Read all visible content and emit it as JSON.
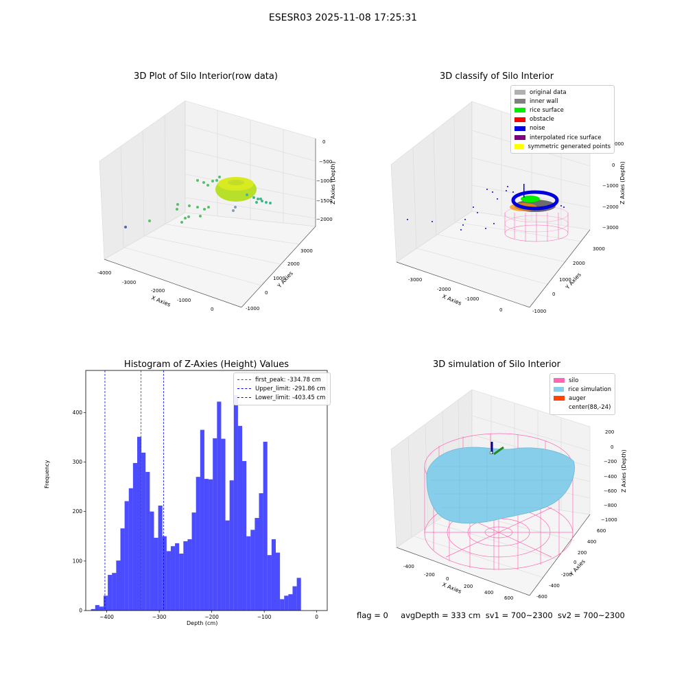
{
  "figure": {
    "title": "ESESR03 2025-11-08 17:25:31",
    "status": {
      "flag": "flag = 0",
      "avg_depth": "avgDepth = 333 cm",
      "sv1": "sv1 = 700~2300",
      "sv2": "sv2 = 700~2300"
    }
  },
  "panels": {
    "raw": {
      "title": "3D Plot of Silo Interior(row data)",
      "xlabel": "X Axies",
      "ylabel": "Y Axies",
      "zlabel": "Z Axies (Depth)",
      "xticks": [
        "-4000",
        "-3000",
        "-2000",
        "-1000",
        "0"
      ],
      "yticks": [
        "-1000",
        "0",
        "1000",
        "2000",
        "3000"
      ],
      "zticks": [
        "0",
        "−500",
        "−1000",
        "−1500",
        "−2000"
      ]
    },
    "classify": {
      "title": "3D classify of Silo Interior",
      "xlabel": "X Axies",
      "ylabel": "Y Axies",
      "zlabel": "Z Axies (Depth)",
      "xticks": [
        "-3000",
        "-2000",
        "-1000",
        "0"
      ],
      "yticks": [
        "-1000",
        "0",
        "1000",
        "2000",
        "3000"
      ],
      "zticks": [
        "000",
        "0",
        "−1000",
        "−2000",
        "−3000"
      ],
      "legend": [
        {
          "label": "original data",
          "color": "#b0b0b0"
        },
        {
          "label": "inner wall",
          "color": "#808080"
        },
        {
          "label": "rice surface",
          "color": "#00ee00"
        },
        {
          "label": "obstacle",
          "color": "#ff0000"
        },
        {
          "label": "noise",
          "color": "#0000dd"
        },
        {
          "label": "interpolated rice surface",
          "color": "#800080"
        },
        {
          "label": "symmetric generated points",
          "color": "#ffff00"
        }
      ]
    },
    "simulation": {
      "title": "3D simulation of Silo Interior",
      "xlabel": "X Axies",
      "ylabel": "Y Axies",
      "zlabel": "Z Axies (Depth)",
      "xticks": [
        "-400",
        "-200",
        "0",
        "200",
        "400",
        "600"
      ],
      "yticks": [
        "-600",
        "-400",
        "-200",
        "0",
        "200",
        "400",
        "600"
      ],
      "zticks": [
        "200",
        "0",
        "−200",
        "−400",
        "−600",
        "−800",
        "−1000"
      ],
      "legend": [
        {
          "label": "silo",
          "color": "#ff69b4"
        },
        {
          "label": "rice simulation",
          "color": "#87ceeb"
        },
        {
          "label": "auger",
          "color": "#ff4500"
        },
        {
          "label": "center(88,-24)",
          "color": ""
        }
      ]
    }
  },
  "chart_data": {
    "type": "bar",
    "title": "Histogram of Z-Axies (Height) Values",
    "xlabel": "Depth (cm)",
    "ylabel": "Frequency",
    "xlim": [
      -440,
      20
    ],
    "ylim": [
      0,
      485
    ],
    "xticks": [
      -400,
      -300,
      -200,
      -100,
      0
    ],
    "xtick_labels": [
      "−400",
      "−300",
      "−200",
      "−100",
      "0"
    ],
    "yticks": [
      0,
      100,
      200,
      300,
      400
    ],
    "bar_color": "#0000ff",
    "bins": [
      {
        "x0": -430,
        "x1": -422,
        "value": 3
      },
      {
        "x0": -422,
        "x1": -414,
        "value": 11
      },
      {
        "x0": -414,
        "x1": -406,
        "value": 8
      },
      {
        "x0": -406,
        "x1": -398,
        "value": 30
      },
      {
        "x0": -398,
        "x1": -390,
        "value": 72
      },
      {
        "x0": -390,
        "x1": -382,
        "value": 76
      },
      {
        "x0": -382,
        "x1": -374,
        "value": 101
      },
      {
        "x0": -374,
        "x1": -366,
        "value": 166
      },
      {
        "x0": -366,
        "x1": -358,
        "value": 221
      },
      {
        "x0": -358,
        "x1": -350,
        "value": 247
      },
      {
        "x0": -350,
        "x1": -342,
        "value": 298
      },
      {
        "x0": -342,
        "x1": -334,
        "value": 351
      },
      {
        "x0": -334,
        "x1": -326,
        "value": 319
      },
      {
        "x0": -326,
        "x1": -318,
        "value": 280
      },
      {
        "x0": -318,
        "x1": -310,
        "value": 200
      },
      {
        "x0": -310,
        "x1": -302,
        "value": 147
      },
      {
        "x0": -302,
        "x1": -294,
        "value": 212
      },
      {
        "x0": -294,
        "x1": -286,
        "value": 150
      },
      {
        "x0": -286,
        "x1": -278,
        "value": 120
      },
      {
        "x0": -278,
        "x1": -270,
        "value": 130
      },
      {
        "x0": -270,
        "x1": -262,
        "value": 136
      },
      {
        "x0": -262,
        "x1": -254,
        "value": 115
      },
      {
        "x0": -254,
        "x1": -246,
        "value": 140
      },
      {
        "x0": -246,
        "x1": -238,
        "value": 144
      },
      {
        "x0": -238,
        "x1": -230,
        "value": 198
      },
      {
        "x0": -230,
        "x1": -222,
        "value": 270
      },
      {
        "x0": -222,
        "x1": -214,
        "value": 365
      },
      {
        "x0": -214,
        "x1": -206,
        "value": 266
      },
      {
        "x0": -206,
        "x1": -198,
        "value": 265
      },
      {
        "x0": -198,
        "x1": -190,
        "value": 348
      },
      {
        "x0": -190,
        "x1": -182,
        "value": 422
      },
      {
        "x0": -182,
        "x1": -174,
        "value": 347
      },
      {
        "x0": -174,
        "x1": -166,
        "value": 182
      },
      {
        "x0": -166,
        "x1": -158,
        "value": 263
      },
      {
        "x0": -158,
        "x1": -150,
        "value": 435
      },
      {
        "x0": -150,
        "x1": -142,
        "value": 373
      },
      {
        "x0": -142,
        "x1": -134,
        "value": 302
      },
      {
        "x0": -134,
        "x1": -126,
        "value": 150
      },
      {
        "x0": -126,
        "x1": -118,
        "value": 163
      },
      {
        "x0": -118,
        "x1": -110,
        "value": 187
      },
      {
        "x0": -110,
        "x1": -102,
        "value": 237
      },
      {
        "x0": -102,
        "x1": -94,
        "value": 341
      },
      {
        "x0": -94,
        "x1": -86,
        "value": 112
      },
      {
        "x0": -86,
        "x1": -78,
        "value": 144
      },
      {
        "x0": -78,
        "x1": -70,
        "value": 117
      },
      {
        "x0": -70,
        "x1": -62,
        "value": 23
      },
      {
        "x0": -62,
        "x1": -54,
        "value": 30
      },
      {
        "x0": -54,
        "x1": -46,
        "value": 33
      },
      {
        "x0": -46,
        "x1": -38,
        "value": 49
      },
      {
        "x0": -38,
        "x1": -30,
        "value": 66
      }
    ],
    "vlines": [
      {
        "x": -334.78,
        "color": "#ff0000",
        "label": "first_peak: -334.78 cm"
      },
      {
        "x": -291.86,
        "color": "#0000ff",
        "label": "Upper_limit: -291.86 cm"
      },
      {
        "x": -403.45,
        "color": "#0000ff",
        "label": "Lower_limit: -403.45 cm"
      }
    ],
    "legend_position": "upper right"
  }
}
